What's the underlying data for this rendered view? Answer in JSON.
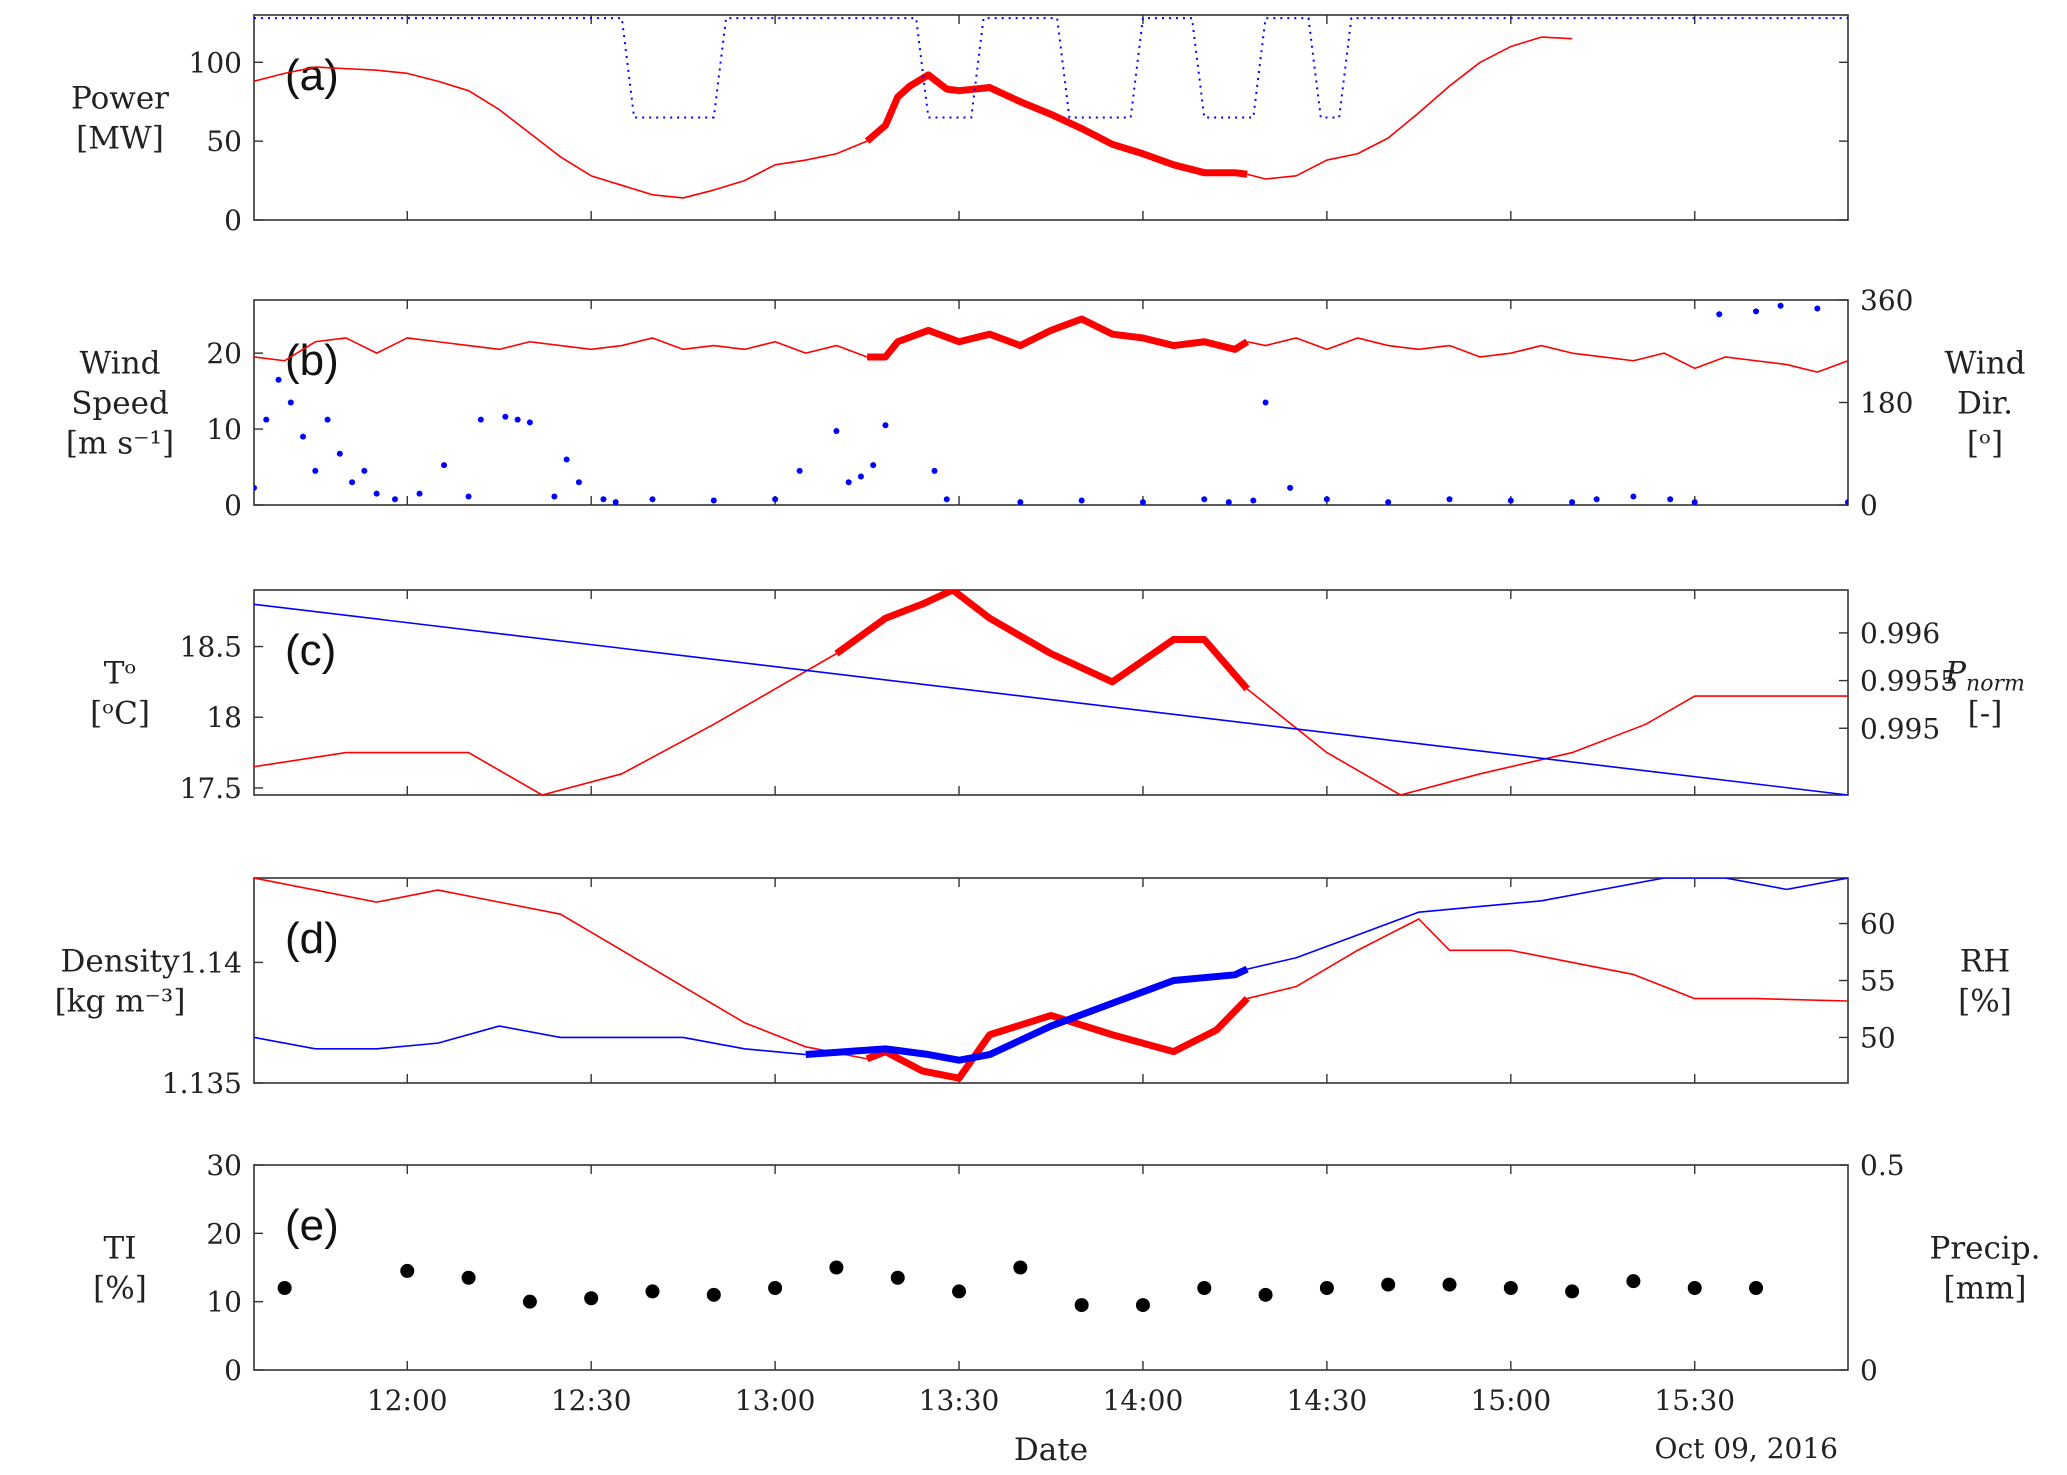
{
  "chart_data": [
    {
      "type": "line",
      "panel_label": "(a)",
      "ylabel_lines": [
        "Power",
        "[MW]"
      ],
      "xlim": [
        "11:35",
        "15:55"
      ],
      "ylim": [
        0,
        130
      ],
      "yticks": [
        0,
        50,
        100
      ],
      "highlight_interval": [
        "13:18",
        "14:17"
      ],
      "series": [
        {
          "color": "#ff0000",
          "style": "solid",
          "x": [
            "11:35",
            "11:40",
            "11:45",
            "11:50",
            "11:55",
            "12:00",
            "12:05",
            "12:10",
            "12:15",
            "12:20",
            "12:25",
            "12:30",
            "12:35",
            "12:40",
            "12:45",
            "12:50",
            "12:55",
            "13:00",
            "13:05",
            "13:10",
            "13:15",
            "13:18",
            "13:20",
            "13:22",
            "13:25",
            "13:28",
            "13:30",
            "13:35",
            "13:40",
            "13:45",
            "13:50",
            "13:55",
            "14:00",
            "14:05",
            "14:10",
            "14:15",
            "14:17",
            "14:20",
            "14:25",
            "14:30",
            "14:35",
            "14:40",
            "14:45",
            "14:50",
            "14:55",
            "15:00",
            "15:05",
            "15:10"
          ],
          "values": [
            88,
            93,
            97,
            96,
            95,
            93,
            88,
            82,
            70,
            55,
            40,
            28,
            22,
            16,
            14,
            19,
            25,
            35,
            38,
            42,
            50,
            60,
            78,
            85,
            92,
            83,
            82,
            84,
            75,
            67,
            58,
            48,
            42,
            35,
            30,
            30,
            29,
            26,
            28,
            38,
            42,
            52,
            68,
            85,
            100,
            110,
            116,
            115
          ]
        },
        {
          "color": "#0000ff",
          "style": "dotted",
          "x": [
            "11:35",
            "12:35",
            "12:37",
            "12:50",
            "12:52",
            "13:23",
            "13:25",
            "13:32",
            "13:34",
            "13:46",
            "13:48",
            "13:58",
            "14:00",
            "14:08",
            "14:10",
            "14:18",
            "14:20",
            "14:27",
            "14:29",
            "14:32",
            "14:34",
            "15:55"
          ],
          "values": [
            128,
            128,
            65,
            65,
            128,
            128,
            65,
            65,
            128,
            128,
            65,
            65,
            128,
            128,
            65,
            65,
            128,
            128,
            65,
            65,
            128,
            128
          ]
        }
      ]
    },
    {
      "type": "line",
      "panel_label": "(b)",
      "ylabel_lines": [
        "Wind",
        "Speed",
        "[m s⁻¹]"
      ],
      "y2label_lines": [
        "Wind",
        "Dir.",
        "[ᵒ]"
      ],
      "ylim": [
        0,
        27
      ],
      "yticks": [
        0,
        10,
        20
      ],
      "y2lim": [
        0,
        360
      ],
      "y2ticks": [
        0,
        180,
        360
      ],
      "highlight_interval": [
        "13:18",
        "14:17"
      ],
      "series": [
        {
          "color": "#ff0000",
          "style": "solid",
          "axis": "left",
          "x": [
            "11:35",
            "11:40",
            "11:45",
            "11:50",
            "11:55",
            "12:00",
            "12:05",
            "12:10",
            "12:15",
            "12:20",
            "12:25",
            "12:30",
            "12:35",
            "12:40",
            "12:45",
            "12:50",
            "12:55",
            "13:00",
            "13:05",
            "13:10",
            "13:15",
            "13:18",
            "13:20",
            "13:25",
            "13:30",
            "13:35",
            "13:40",
            "13:45",
            "13:50",
            "13:55",
            "14:00",
            "14:05",
            "14:10",
            "14:15",
            "14:17",
            "14:20",
            "14:25",
            "14:30",
            "14:35",
            "14:40",
            "14:45",
            "14:50",
            "14:55",
            "15:00",
            "15:05",
            "15:10",
            "15:15",
            "15:20",
            "15:25",
            "15:30",
            "15:35",
            "15:40",
            "15:45",
            "15:50",
            "15:55"
          ],
          "values": [
            19.5,
            19.0,
            21.5,
            22.0,
            20.0,
            22.0,
            21.5,
            21.0,
            20.5,
            21.5,
            21.0,
            20.5,
            21.0,
            22.0,
            20.5,
            21.0,
            20.5,
            21.5,
            20.0,
            21.0,
            19.5,
            19.5,
            21.5,
            23.0,
            21.5,
            22.5,
            21.0,
            23.0,
            24.5,
            22.5,
            22.0,
            21.0,
            21.5,
            20.5,
            21.5,
            21.0,
            22.0,
            20.5,
            22.0,
            21.0,
            20.5,
            21.0,
            19.5,
            20.0,
            21.0,
            20.0,
            19.5,
            19.0,
            20.0,
            18.0,
            19.5,
            19.0,
            18.5,
            17.5,
            19.0
          ]
        },
        {
          "color": "#0000ff",
          "style": "dots",
          "axis": "right",
          "x": [
            "11:35",
            "11:37",
            "11:39",
            "11:41",
            "11:43",
            "11:45",
            "11:47",
            "11:49",
            "11:51",
            "11:53",
            "11:55",
            "11:58",
            "12:02",
            "12:06",
            "12:10",
            "12:12",
            "12:16",
            "12:18",
            "12:20",
            "12:24",
            "12:26",
            "12:28",
            "12:32",
            "12:34",
            "12:40",
            "12:50",
            "13:00",
            "13:04",
            "13:10",
            "13:12",
            "13:14",
            "13:16",
            "13:18",
            "13:26",
            "13:28",
            "13:40",
            "13:50",
            "14:00",
            "14:10",
            "14:14",
            "14:18",
            "14:20",
            "14:24",
            "14:30",
            "14:40",
            "14:50",
            "15:00",
            "15:10",
            "15:14",
            "15:20",
            "15:26",
            "15:30",
            "15:34",
            "15:40",
            "15:44",
            "15:50",
            "15:55"
          ],
          "values": [
            30,
            150,
            220,
            180,
            120,
            60,
            150,
            90,
            40,
            60,
            20,
            10,
            20,
            70,
            15,
            150,
            155,
            150,
            145,
            15,
            80,
            40,
            10,
            5,
            10,
            8,
            10,
            60,
            130,
            40,
            50,
            70,
            140,
            60,
            10,
            5,
            8,
            5,
            10,
            5,
            8,
            180,
            30,
            10,
            5,
            10,
            8,
            5,
            10,
            15,
            10,
            5,
            335,
            340,
            350,
            345,
            5
          ]
        }
      ]
    },
    {
      "type": "line",
      "panel_label": "(c)",
      "ylabel_lines": [
        "Tᵒ",
        "[ᵒC]"
      ],
      "y2label_lines": [
        "P_norm",
        "[-]"
      ],
      "ylim": [
        17.45,
        18.9
      ],
      "yticks": [
        17.5,
        18,
        18.5
      ],
      "yticklabels": [
        "17.5",
        "18",
        "18.5"
      ],
      "y2lim": [
        0.9943,
        0.99645
      ],
      "y2ticks": [
        0.995,
        0.9955,
        0.996
      ],
      "y2ticklabels": [
        "0.995",
        "0.9955",
        "0.996"
      ],
      "highlight_interval": [
        "13:18",
        "14:17"
      ],
      "series": [
        {
          "color": "#ff0000",
          "style": "solid",
          "axis": "left",
          "x": [
            "11:35",
            "11:50",
            "12:00",
            "12:10",
            "12:22",
            "12:35",
            "12:50",
            "13:00",
            "13:10",
            "13:18",
            "13:24",
            "13:29",
            "13:35",
            "13:45",
            "13:55",
            "14:05",
            "14:10",
            "14:15",
            "14:17",
            "14:30",
            "14:42",
            "14:55",
            "15:10",
            "15:22",
            "15:30",
            "15:40",
            "15:55"
          ],
          "values": [
            17.65,
            17.75,
            17.75,
            17.75,
            17.45,
            17.6,
            17.95,
            18.2,
            18.45,
            18.7,
            18.8,
            18.9,
            18.7,
            18.45,
            18.25,
            18.55,
            18.55,
            18.3,
            18.2,
            17.75,
            17.45,
            17.6,
            17.75,
            17.95,
            18.15,
            18.15,
            18.15
          ]
        },
        {
          "color": "#0000ff",
          "style": "solid",
          "axis": "right",
          "x": [
            "11:35",
            "15:55"
          ],
          "values": [
            0.9963,
            0.9943
          ]
        }
      ]
    },
    {
      "type": "line",
      "panel_label": "(d)",
      "ylabel_lines": [
        "Density",
        "[kg m⁻³]"
      ],
      "y2label_lines": [
        "RH",
        "[%]"
      ],
      "ylim": [
        1.135,
        1.1435
      ],
      "yticks": [
        1.135,
        1.14
      ],
      "yticklabels": [
        "1.135",
        "1.14"
      ],
      "y2lim": [
        46,
        64
      ],
      "y2ticks": [
        50,
        55,
        60
      ],
      "highlight_interval": [
        "13:18",
        "14:17"
      ],
      "series": [
        {
          "color": "#ff0000",
          "style": "solid",
          "axis": "left",
          "x": [
            "11:35",
            "11:45",
            "11:55",
            "12:05",
            "12:15",
            "12:25",
            "12:35",
            "12:45",
            "12:55",
            "13:05",
            "13:15",
            "13:18",
            "13:24",
            "13:30",
            "13:35",
            "13:45",
            "13:55",
            "14:05",
            "14:12",
            "14:17",
            "14:25",
            "14:35",
            "14:45",
            "14:50",
            "15:00",
            "15:10",
            "15:20",
            "15:30",
            "15:40",
            "15:55"
          ],
          "values": [
            1.1435,
            1.143,
            1.1425,
            1.143,
            1.1425,
            1.142,
            1.1405,
            1.139,
            1.1375,
            1.1365,
            1.136,
            1.1363,
            1.1355,
            1.1352,
            1.137,
            1.1378,
            1.137,
            1.1363,
            1.1372,
            1.1385,
            1.139,
            1.1405,
            1.1418,
            1.1405,
            1.1405,
            1.14,
            1.1395,
            1.1385,
            1.1385,
            1.1384
          ]
        },
        {
          "color": "#0000ff",
          "style": "solid",
          "axis": "right",
          "x": [
            "11:35",
            "11:45",
            "11:55",
            "12:05",
            "12:15",
            "12:25",
            "12:35",
            "12:45",
            "12:55",
            "13:05",
            "13:18",
            "13:25",
            "13:30",
            "13:35",
            "13:45",
            "13:55",
            "14:05",
            "14:15",
            "14:17",
            "14:25",
            "14:35",
            "14:45",
            "14:55",
            "15:05",
            "15:15",
            "15:25",
            "15:35",
            "15:45",
            "15:55"
          ],
          "values": [
            50,
            49,
            49,
            49.5,
            51,
            50,
            50,
            50,
            49,
            48.5,
            49,
            48.5,
            48,
            48.5,
            51,
            53,
            55,
            55.5,
            56,
            57,
            59,
            61,
            61.5,
            62,
            63,
            64,
            64,
            63,
            64
          ]
        }
      ]
    },
    {
      "type": "scatter",
      "panel_label": "(e)",
      "ylabel_lines": [
        "TI",
        "[%]"
      ],
      "y2label_lines": [
        "Precip.",
        "[mm]"
      ],
      "ylim": [
        0,
        30
      ],
      "yticks": [
        0,
        10,
        20,
        30
      ],
      "y2lim": [
        0,
        0.5
      ],
      "y2ticks": [
        0,
        0.5
      ],
      "xlabel": "Date",
      "xticks": [
        "12:00",
        "12:30",
        "13:00",
        "13:30",
        "14:00",
        "14:30",
        "15:00",
        "15:30"
      ],
      "date_note": "Oct 09, 2016",
      "series": [
        {
          "color": "#000000",
          "style": "dots",
          "axis": "left",
          "x": [
            "11:40",
            "12:00",
            "12:10",
            "12:20",
            "12:30",
            "12:40",
            "12:50",
            "13:00",
            "13:10",
            "13:20",
            "13:30",
            "13:40",
            "13:50",
            "14:00",
            "14:10",
            "14:20",
            "14:30",
            "14:40",
            "14:50",
            "15:00",
            "15:10",
            "15:20",
            "15:30",
            "15:40"
          ],
          "values": [
            12,
            14.5,
            13.5,
            10,
            10.5,
            11.5,
            11,
            12,
            15,
            13.5,
            11.5,
            15,
            9.5,
            9.5,
            12,
            11,
            12,
            12.5,
            12.5,
            12,
            11.5,
            13,
            12,
            12
          ]
        }
      ]
    }
  ]
}
